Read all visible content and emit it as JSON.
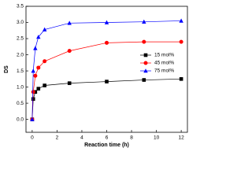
{
  "chart_data": {
    "type": "line",
    "x_label": "Reaction time (h)",
    "y_label": "DS",
    "x": [
      0,
      0.083,
      0.25,
      0.5,
      1,
      3,
      6,
      9,
      12
    ],
    "series": [
      {
        "name": "15 mol%",
        "color": "#000000",
        "marker": "square",
        "values": [
          0,
          0.63,
          0.85,
          0.95,
          1.05,
          1.12,
          1.17,
          1.22,
          1.25
        ]
      },
      {
        "name": "45 mol%",
        "color": "#ff0000",
        "marker": "circle",
        "values": [
          0,
          0.85,
          1.35,
          1.6,
          1.8,
          2.12,
          2.37,
          2.4,
          2.4
        ]
      },
      {
        "name": "75 mol%",
        "color": "#0000ff",
        "marker": "triangle",
        "values": [
          0,
          1.5,
          2.2,
          2.55,
          2.78,
          2.98,
          3.0,
          3.02,
          3.05
        ]
      }
    ],
    "xlim": [
      -0.5,
      12.5
    ],
    "xticks": [
      0,
      2,
      4,
      6,
      8,
      10,
      12
    ],
    "ylim": [
      -0.4,
      3.5
    ],
    "yticks": [
      {
        "value": 0,
        "label": "0.0"
      },
      {
        "value": 0.5,
        "label": "0.5"
      },
      {
        "value": 1,
        "label": "1.0"
      },
      {
        "value": 1.5,
        "label": "1.5"
      },
      {
        "value": 2,
        "label": "2.0"
      },
      {
        "value": 2.5,
        "label": "2.5"
      },
      {
        "value": 3,
        "label": "3.0"
      },
      {
        "value": 3.5,
        "label": "3.5"
      }
    ],
    "legend": "right",
    "grid": false
  }
}
